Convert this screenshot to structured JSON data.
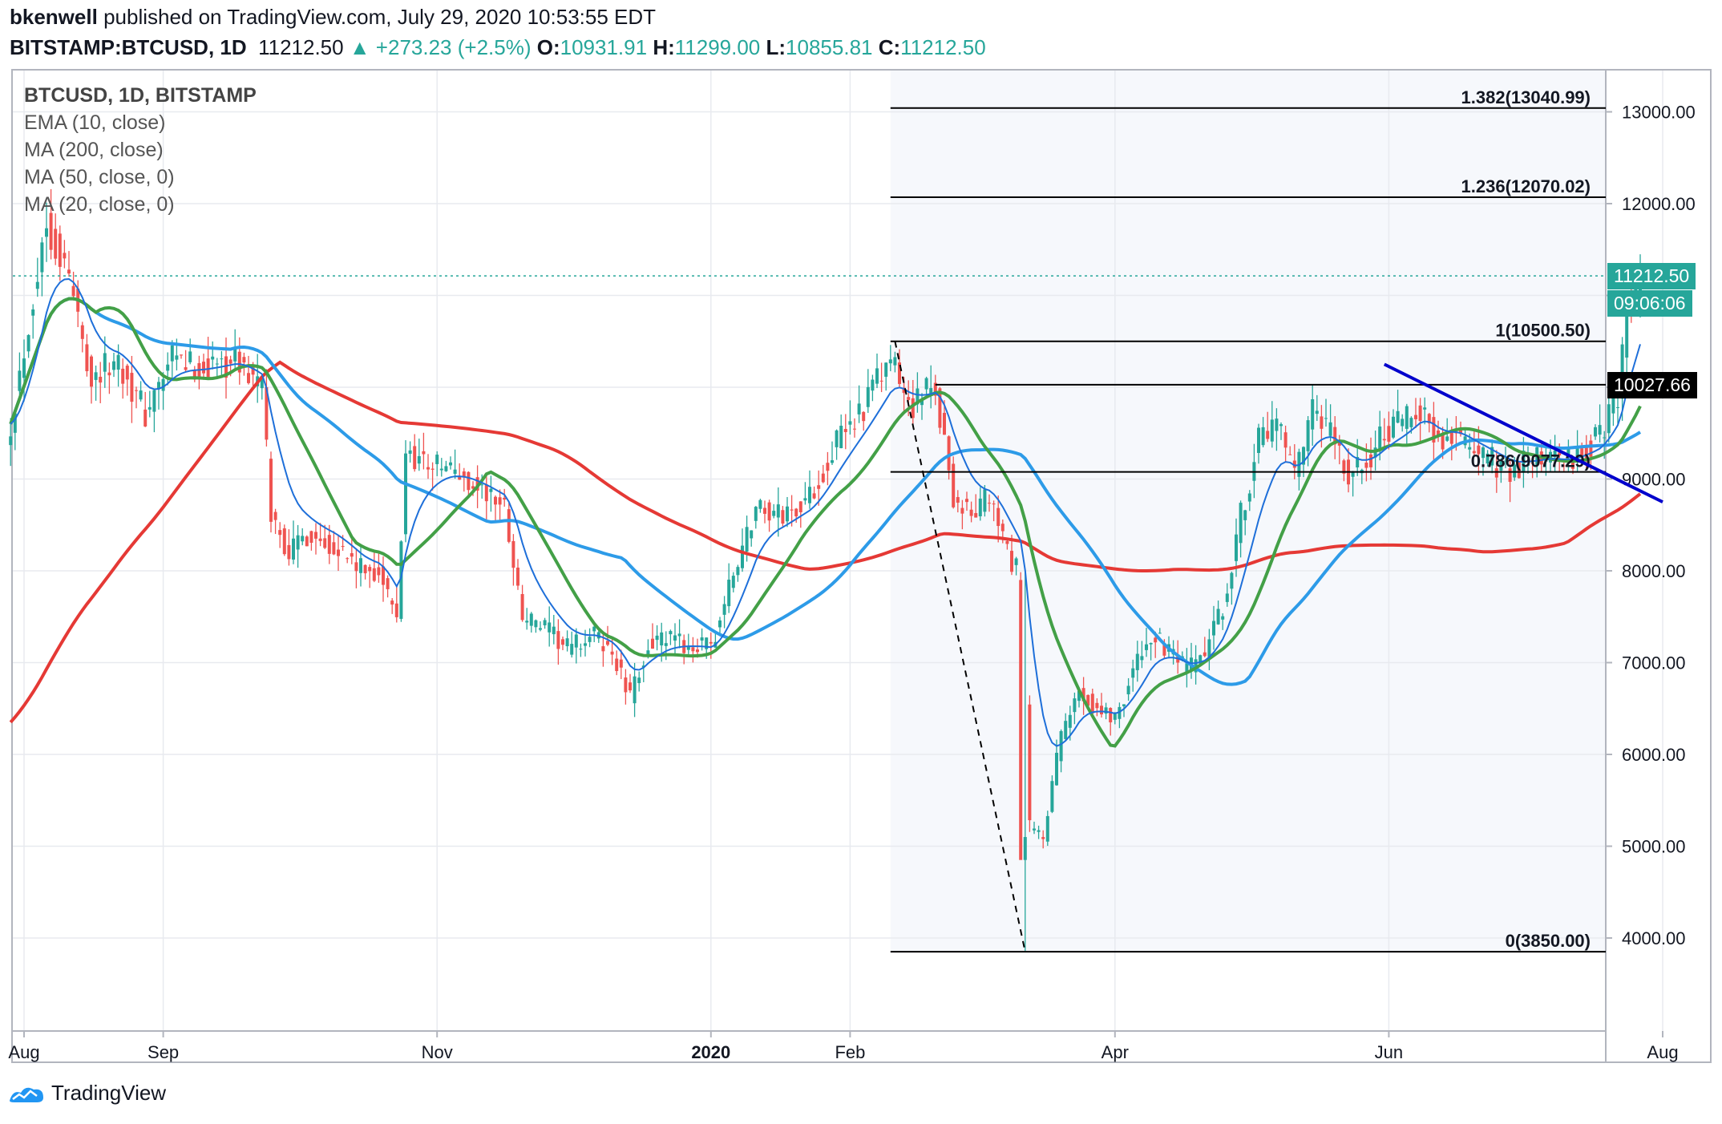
{
  "header": {
    "publisher": "bkenwell",
    "published_text": "published on TradingView.com, July 29, 2020 10:53:55 EDT",
    "symbol": "BITSTAMP:BTCUSD, 1D",
    "last": "11212.50",
    "change": "+273.23 (+2.5%)",
    "o_label": "O:",
    "o": "10931.91",
    "h_label": "H:",
    "h": "11299.00",
    "l_label": "L:",
    "l": "10855.81",
    "c_label": "C:",
    "c": "11212.50"
  },
  "legend": {
    "symbol": "BTCUSD, 1D, BITSTAMP",
    "items": [
      "EMA (10, close)",
      "MA (200, close)",
      "MA (50, close, 0)",
      "MA (20, close, 0)"
    ]
  },
  "footer": {
    "brand": "TradingView"
  },
  "tags": {
    "price": "11212.50",
    "countdown": "09:06:06",
    "level": "10027.66"
  },
  "colors": {
    "up": "#26a69a",
    "down": "#ef5350",
    "ema10": "#1e6fd9",
    "ma200": "#e53935",
    "ma50": "#2d9be8",
    "ma20": "#43a047",
    "trendline": "#0000cc",
    "fib": "#000000"
  },
  "chart_data": {
    "type": "candlestick",
    "ylim": [
      3000,
      13400
    ],
    "y_ticks": [
      4000,
      5000,
      6000,
      7000,
      8000,
      9000,
      10000,
      11000,
      12000,
      13000
    ],
    "y_tick_labels": [
      "4000.00",
      "5000.00",
      "6000.00",
      "7000.00",
      "8000.00",
      "9000.00",
      "",
      "",
      "12000.00",
      "13000.00"
    ],
    "x_range_days": [
      0,
      368
    ],
    "x_ticks": [
      {
        "label": "Aug",
        "day": 3
      },
      {
        "label": "Sep",
        "day": 34
      },
      {
        "label": "Nov",
        "day": 95
      },
      {
        "label": "2020",
        "day": 156
      },
      {
        "label": "Feb",
        "day": 187
      },
      {
        "label": "Apr",
        "day": 246
      },
      {
        "label": "Jun",
        "day": 307
      },
      {
        "label": "Aug",
        "day": 368
      }
    ],
    "close_path": [
      [
        0,
        9600
      ],
      [
        8,
        11800
      ],
      [
        13,
        11200
      ],
      [
        18,
        10100
      ],
      [
        24,
        10300
      ],
      [
        30,
        9700
      ],
      [
        36,
        10300
      ],
      [
        42,
        10200
      ],
      [
        50,
        10300
      ],
      [
        56,
        10000
      ],
      [
        58,
        8600
      ],
      [
        62,
        8200
      ],
      [
        66,
        8400
      ],
      [
        72,
        8300
      ],
      [
        78,
        8000
      ],
      [
        82,
        8000
      ],
      [
        86,
        7450
      ],
      [
        88,
        9300
      ],
      [
        92,
        9200
      ],
      [
        98,
        9100
      ],
      [
        104,
        8900
      ],
      [
        110,
        8700
      ],
      [
        114,
        7500
      ],
      [
        118,
        7400
      ],
      [
        124,
        7150
      ],
      [
        130,
        7300
      ],
      [
        134,
        7100
      ],
      [
        138,
        6600
      ],
      [
        142,
        7200
      ],
      [
        146,
        7250
      ],
      [
        150,
        7200
      ],
      [
        156,
        7150
      ],
      [
        160,
        7800
      ],
      [
        166,
        8700
      ],
      [
        172,
        8600
      ],
      [
        178,
        8800
      ],
      [
        184,
        9400
      ],
      [
        190,
        9800
      ],
      [
        196,
        10300
      ],
      [
        200,
        9800
      ],
      [
        206,
        10000
      ],
      [
        210,
        8800
      ],
      [
        214,
        8600
      ],
      [
        218,
        8800
      ],
      [
        222,
        8200
      ],
      [
        225,
        7900
      ],
      [
        227,
        5200
      ],
      [
        230,
        5100
      ],
      [
        234,
        6200
      ],
      [
        238,
        6700
      ],
      [
        242,
        6500
      ],
      [
        246,
        6400
      ],
      [
        250,
        6900
      ],
      [
        254,
        7300
      ],
      [
        258,
        7100
      ],
      [
        262,
        6900
      ],
      [
        266,
        7100
      ],
      [
        270,
        7600
      ],
      [
        274,
        8600
      ],
      [
        278,
        9400
      ],
      [
        282,
        9600
      ],
      [
        286,
        9000
      ],
      [
        290,
        9700
      ],
      [
        294,
        9500
      ],
      [
        298,
        9000
      ],
      [
        302,
        9200
      ],
      [
        306,
        9500
      ],
      [
        310,
        9600
      ],
      [
        314,
        9800
      ],
      [
        318,
        9400
      ],
      [
        322,
        9500
      ],
      [
        326,
        9300
      ],
      [
        330,
        9200
      ],
      [
        334,
        9100
      ],
      [
        338,
        9200
      ],
      [
        342,
        9250
      ],
      [
        346,
        9200
      ],
      [
        350,
        9300
      ],
      [
        354,
        9450
      ],
      [
        358,
        9950
      ],
      [
        360,
        10900
      ],
      [
        362,
        11050
      ],
      [
        363,
        11212
      ]
    ],
    "last_close": 11212.5,
    "moving_averages": [
      {
        "name": "EMA (10, close)",
        "period": 10,
        "kind": "ema"
      },
      {
        "name": "MA (200, close)",
        "period": 200,
        "kind": "sma"
      },
      {
        "name": "MA (50, close, 0)",
        "period": 50,
        "kind": "sma"
      },
      {
        "name": "MA (20, close, 0)",
        "period": 20,
        "kind": "sma"
      }
    ],
    "fibonacci": {
      "levels": [
        {
          "label": "1.382(13040.99)",
          "price": 13040.99
        },
        {
          "label": "1.236(12070.02)",
          "price": 12070.02
        },
        {
          "label": "1(10500.50)",
          "price": 10500.5
        },
        {
          "label": "0.786(9077.29)",
          "price": 9077.29
        },
        {
          "label": "0(3850.00)",
          "price": 3850.0
        }
      ],
      "start_day": 196
    },
    "resistance_line": {
      "price": 10027.66,
      "start_day": 206
    },
    "trendline": {
      "start": [
        306,
        10250
      ],
      "end": [
        368,
        8750
      ]
    },
    "dashed_line": {
      "start": [
        197,
        10500.5
      ],
      "end": [
        226,
        3850
      ]
    }
  }
}
